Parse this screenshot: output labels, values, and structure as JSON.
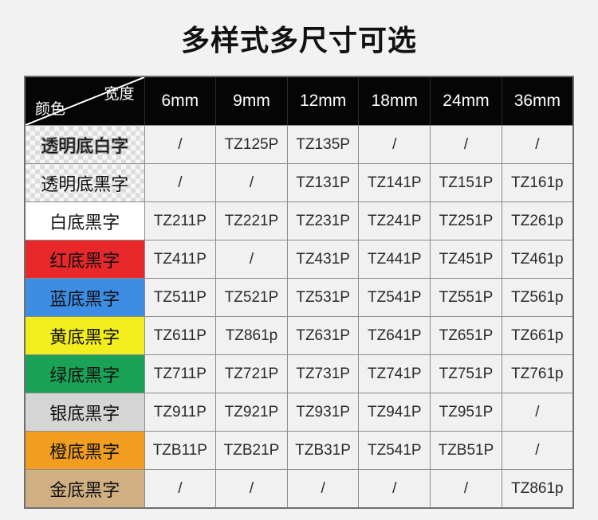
{
  "title": "多样式多尺寸可选",
  "table": {
    "corner": {
      "width_label": "宽度",
      "color_label": "颜色"
    },
    "columns": [
      "6mm",
      "9mm",
      "12mm",
      "18mm",
      "24mm",
      "36mm"
    ],
    "rows": [
      {
        "label": "透明底白字",
        "style": "transparent-white",
        "values": [
          "/",
          "TZ125P",
          "TZ135P",
          "/",
          "/",
          "/"
        ]
      },
      {
        "label": "透明底黑字",
        "style": "transparent-black",
        "values": [
          "/",
          "/",
          "TZ131P",
          "TZ141P",
          "TZ151P",
          "TZ161p"
        ]
      },
      {
        "label": "白底黑字",
        "style": "white",
        "values": [
          "TZ211P",
          "TZ221P",
          "TZ231P",
          "TZ241P",
          "TZ251P",
          "TZ261p"
        ]
      },
      {
        "label": "红底黑字",
        "style": "red",
        "values": [
          "TZ411P",
          "/",
          "TZ431P",
          "TZ441P",
          "TZ451P",
          "TZ461p"
        ]
      },
      {
        "label": "蓝底黑字",
        "style": "blue",
        "values": [
          "TZ511P",
          "TZ521P",
          "TZ531P",
          "TZ541P",
          "TZ551P",
          "TZ561p"
        ]
      },
      {
        "label": "黄底黑字",
        "style": "yellow",
        "values": [
          "TZ611P",
          "TZ861p",
          "TZ631P",
          "TZ641P",
          "TZ651P",
          "TZ661p"
        ]
      },
      {
        "label": "绿底黑字",
        "style": "green",
        "values": [
          "TZ711P",
          "TZ721P",
          "TZ731P",
          "TZ741P",
          "TZ751P",
          "TZ761p"
        ]
      },
      {
        "label": "银底黑字",
        "style": "silver",
        "values": [
          "TZ911P",
          "TZ921P",
          "TZ931P",
          "TZ941P",
          "TZ951P",
          "/"
        ]
      },
      {
        "label": "橙底黑字",
        "style": "orange",
        "values": [
          "TZB11P",
          "TZB21P",
          "TZB31P",
          "TZ541P",
          "TZB51P",
          "/"
        ]
      },
      {
        "label": "金底黑字",
        "style": "gold",
        "values": [
          "/",
          "/",
          "/",
          "/",
          "/",
          "TZ861p"
        ]
      }
    ],
    "colors": {
      "white": "#ffffff",
      "red": "#e8282b",
      "blue": "#3d8de5",
      "yellow": "#f2ee1e",
      "green": "#1aa357",
      "silver": "#d5d5d5",
      "orange": "#f19d20",
      "gold": "#d0b083",
      "header_bg": "#050505"
    }
  }
}
